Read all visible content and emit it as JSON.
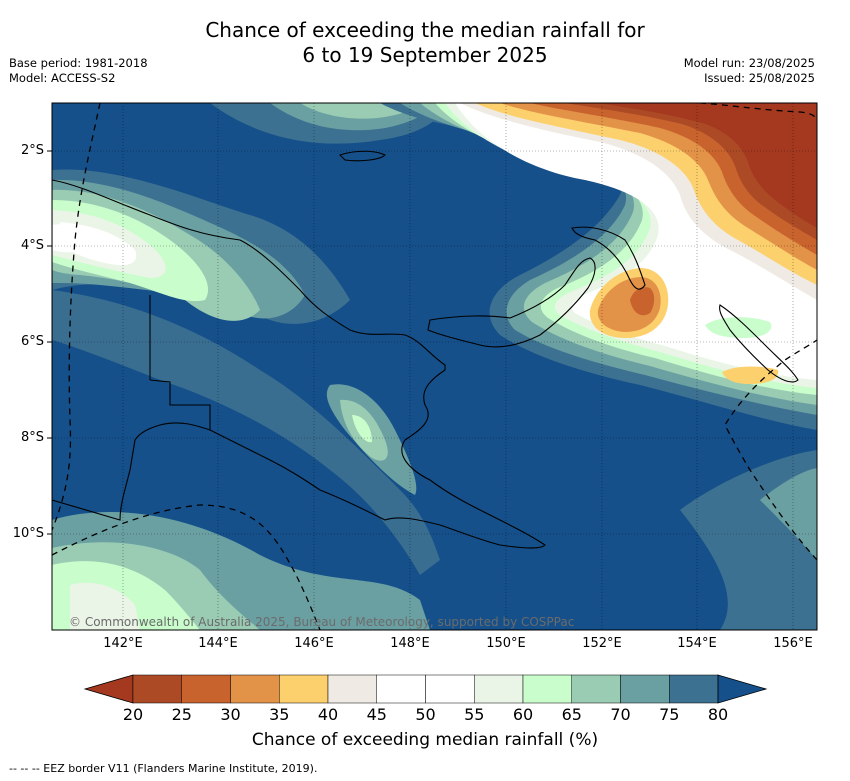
{
  "title_line1": "Chance of exceeding the median rainfall for",
  "title_line2": "6 to 19 September 2025",
  "left_meta": {
    "base_period": "Base period: 1981-2018",
    "model": "Model: ACCESS-S2"
  },
  "right_meta": {
    "model_run": "Model run: 23/08/2025",
    "issued": "Issued: 25/08/2025"
  },
  "copyright": "© Commonwealth of Australia 2025, Bureau of Meteorology, supported by COSPPac",
  "lat_labels": [
    "2°S",
    "4°S",
    "6°S",
    "8°S",
    "10°S"
  ],
  "lon_labels": [
    "142°E",
    "144°E",
    "146°E",
    "148°E",
    "150°E",
    "152°E",
    "154°E",
    "156°E"
  ],
  "colorbar": {
    "ticks": [
      "20",
      "25",
      "30",
      "35",
      "40",
      "45",
      "50",
      "55",
      "60",
      "65",
      "70",
      "75",
      "80"
    ],
    "colors": [
      "#a4391f",
      "#ad4a26",
      "#c9632e",
      "#e29348",
      "#fdd06e",
      "#efebe4",
      "#ffffff",
      "#ffffff",
      "#eaf5e8",
      "#c9fdcc",
      "#9acbb3",
      "#6ba0a3",
      "#3d7191",
      "#15508a"
    ],
    "label": "Chance of exceeding median rainfall (%)"
  },
  "footnote": "--  --  -- EEZ border V11 (Flanders Marine Institute, 2019)."
}
